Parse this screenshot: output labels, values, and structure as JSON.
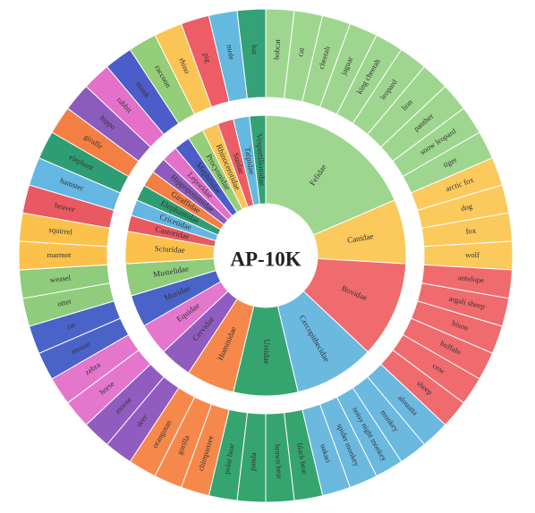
{
  "chart_data": {
    "type": "sunburst",
    "title": "AP-10K",
    "colors": {
      "Felidae": "#9fd68f",
      "Canidae": "#fbc95c",
      "Bovidae": "#ef6b6e",
      "Cercopithecidae": "#6cb9e0",
      "Ursidae": "#36a46f",
      "Hominidae": "#f7884c",
      "Cervidae": "#915cc0",
      "Equidae": "#e476cc",
      "Muridae": "#4a63c8",
      "Mustelidae": "#8fcc7c",
      "Sciuridae": "#fbc14b",
      "Castoridae": "#e95961",
      "Cricetidae": "#63b7e2",
      "Elephantidae": "#2f9d73",
      "Giraffidae": "#f47f45",
      "Hippopotamidae": "#8b5bbd",
      "Leporidae": "#e470c9",
      "Mephitidae": "#4c5cc8",
      "Procyonidae": "#94ce78",
      "Rhinocerotidae": "#fbc555",
      "Suidae": "#ec5d66",
      "Talpidae": "#64b9e0",
      "Vespertilionidae": "#34a276"
    },
    "families": [
      {
        "name": "Felidae",
        "species": [
          "bobcat",
          "cat",
          "cheetah",
          "jaguar",
          "king cheetah",
          "leopard",
          "lion",
          "panther",
          "snow leopard",
          "tiger"
        ]
      },
      {
        "name": "Canidae",
        "species": [
          "arctic fox",
          "dog",
          "fox",
          "wolf"
        ]
      },
      {
        "name": "Bovidae",
        "species": [
          "antelope",
          "argali sheep",
          "bison",
          "buffalo",
          "cow",
          "sheep"
        ]
      },
      {
        "name": "Cercopithecidae",
        "species": [
          "alouatta",
          "monkey",
          "noisy night monkey",
          "spider monkey",
          "uakari"
        ]
      },
      {
        "name": "Ursidae",
        "species": [
          "black bear",
          "brown bear",
          "panda",
          "polar bear"
        ]
      },
      {
        "name": "Hominidae",
        "species": [
          "chimpanzee",
          "gorilla",
          "orangutan"
        ]
      },
      {
        "name": "Cervidae",
        "species": [
          "deer",
          "moose"
        ]
      },
      {
        "name": "Equidae",
        "species": [
          "horse",
          "zebra"
        ]
      },
      {
        "name": "Muridae",
        "species": [
          "mouse",
          "rat"
        ]
      },
      {
        "name": "Mustelidae",
        "species": [
          "otter",
          "weasel"
        ]
      },
      {
        "name": "Sciuridae",
        "species": [
          "marmot",
          "squirrel"
        ]
      },
      {
        "name": "Castoridae",
        "species": [
          "beaver"
        ]
      },
      {
        "name": "Cricetidae",
        "species": [
          "hamster"
        ]
      },
      {
        "name": "Elephantidae",
        "species": [
          "elephant"
        ]
      },
      {
        "name": "Giraffidae",
        "species": [
          "giraffe"
        ]
      },
      {
        "name": "Hippopotamidae",
        "species": [
          "hippo"
        ]
      },
      {
        "name": "Leporidae",
        "species": [
          "rabbit"
        ]
      },
      {
        "name": "Mephitidae",
        "species": [
          "skunk"
        ]
      },
      {
        "name": "Procyonidae",
        "species": [
          "raccoon"
        ]
      },
      {
        "name": "Rhinocerotidae",
        "species": [
          "rhino"
        ]
      },
      {
        "name": "Suidae",
        "species": [
          "pig"
        ]
      },
      {
        "name": "Talpidae",
        "species": [
          "mole"
        ]
      },
      {
        "name": "Vespertilionidae",
        "species": [
          "bat"
        ]
      }
    ]
  }
}
